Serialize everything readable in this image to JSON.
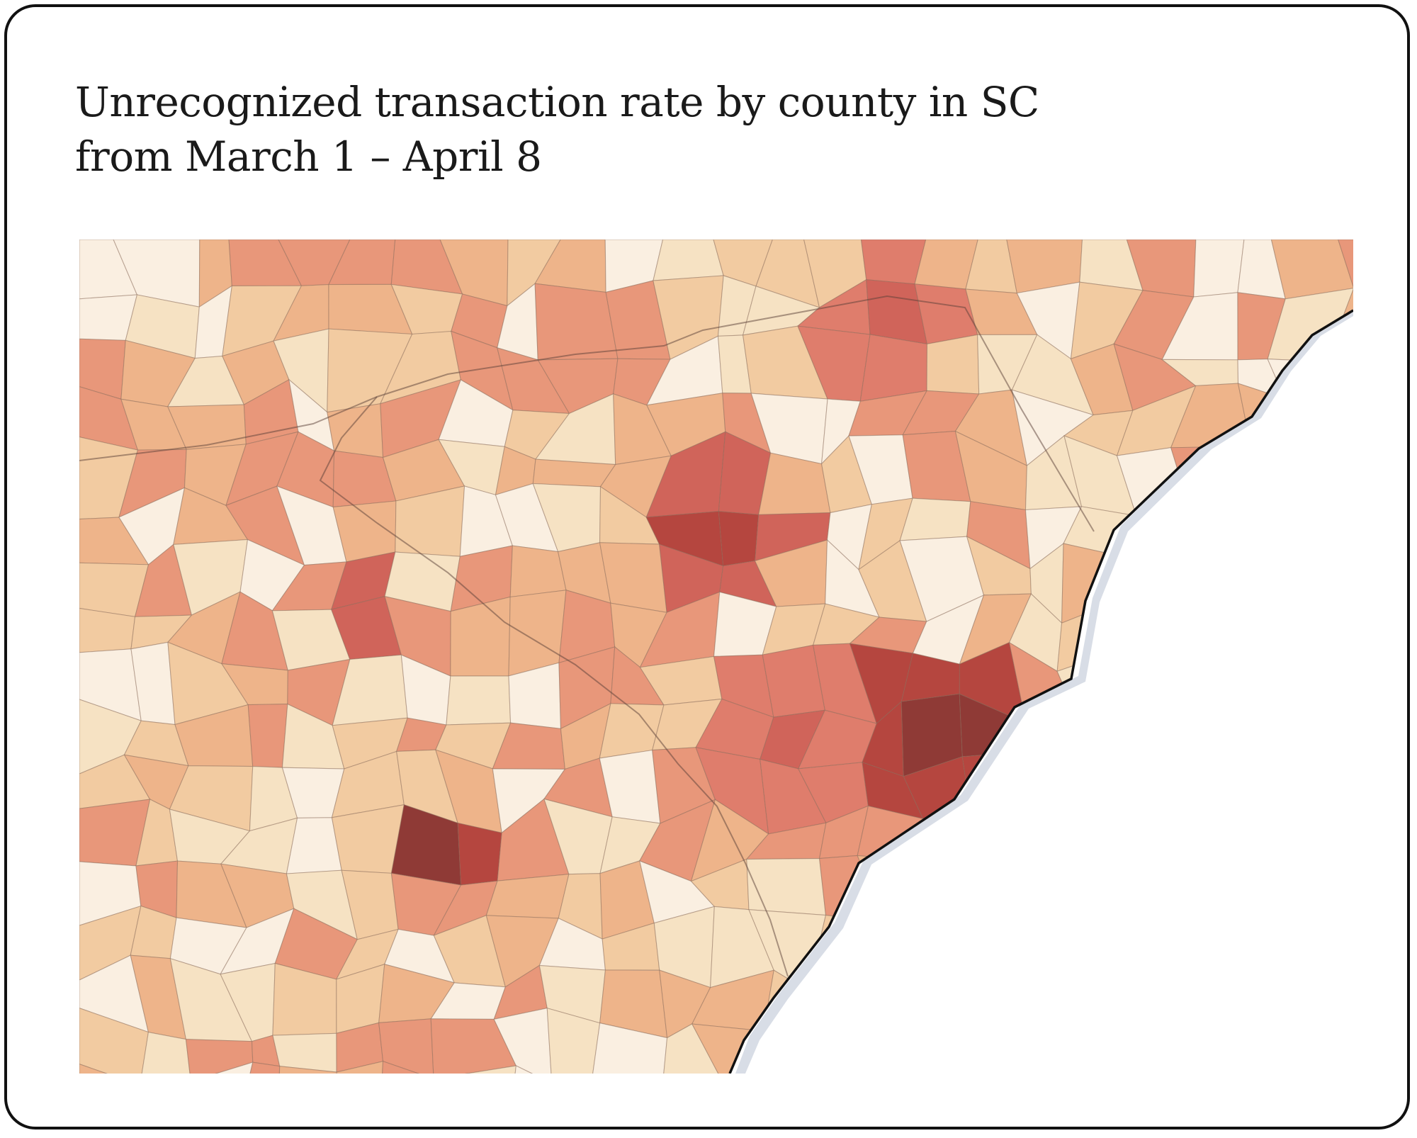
{
  "title": {
    "line1": "Unrecognized transaction rate by county in SC",
    "line2": "from March 1 – April 8"
  },
  "colors": {
    "background": "#ffffff",
    "card_border": "#111111",
    "text": "#1a1a1a",
    "water": "#d8dde6",
    "coastline": "#111111",
    "scale": [
      "#faefe1",
      "#f6e2c3",
      "#f2cba1",
      "#eeb48a",
      "#e8977a",
      "#df7d6c",
      "#d0645a",
      "#b5463f",
      "#8f3a36"
    ]
  }
}
